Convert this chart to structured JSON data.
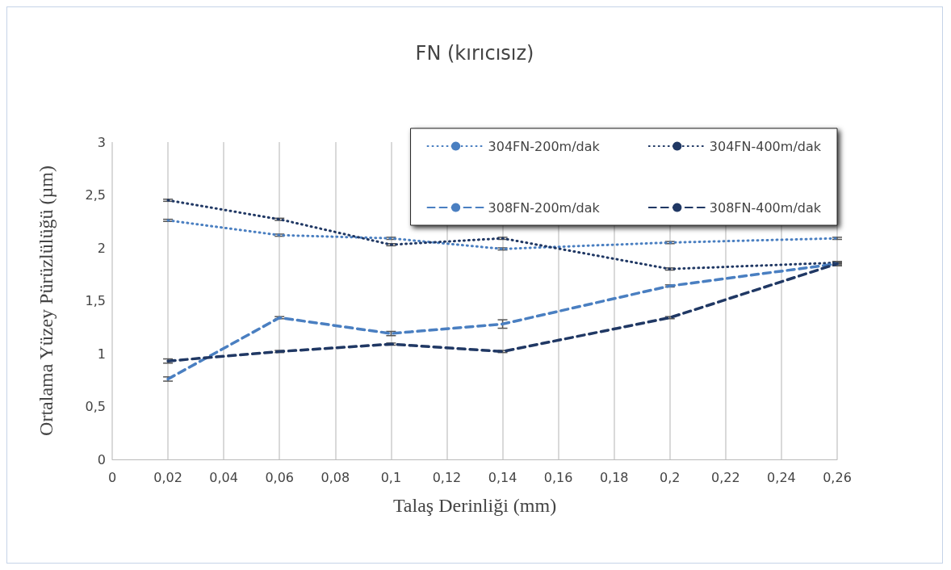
{
  "chart_data": {
    "type": "line",
    "title": "FN (kırıcısız)",
    "xlabel": "Talaş Derinliği (mm)",
    "ylabel": "Ortalama Yüzey Pürüzlülüğü (µm)",
    "x": [
      0.02,
      0.06,
      0.1,
      0.14,
      0.2,
      0.26
    ],
    "xlim": [
      0,
      0.26
    ],
    "xticks": [
      0,
      {
        "value": 0.02,
        "label": "0,02"
      },
      {
        "value": 0.04,
        "label": "0,04"
      },
      {
        "value": 0.06,
        "label": "0,06"
      },
      {
        "value": 0.08,
        "label": "0,08"
      },
      {
        "value": 0.1,
        "label": "0,1"
      },
      {
        "value": 0.12,
        "label": "0,12"
      },
      {
        "value": 0.14,
        "label": "0,14"
      },
      {
        "value": 0.16,
        "label": "0,16"
      },
      {
        "value": 0.18,
        "label": "0,18"
      },
      {
        "value": 0.2,
        "label": "0,2"
      },
      {
        "value": 0.22,
        "label": "0,22"
      },
      {
        "value": 0.24,
        "label": "0,24"
      },
      {
        "value": 0.26,
        "label": "0,26"
      }
    ],
    "ylim": [
      0,
      3
    ],
    "yticks": [
      0,
      {
        "value": 0.5,
        "label": "0,5"
      },
      1,
      {
        "value": 1.5,
        "label": "1,5"
      },
      2,
      {
        "value": 2.5,
        "label": "2,5"
      },
      3
    ],
    "grid": "x",
    "legend": "top right",
    "marker": "none",
    "series": [
      {
        "name": "304FN-200m/dak",
        "color": "#4a7fc1",
        "line_style": "dotted",
        "values": [
          2.26,
          2.12,
          2.09,
          1.99,
          2.05,
          2.09
        ],
        "errors": [
          0.01,
          0.01,
          0.01,
          0.01,
          0.01,
          0.01
        ]
      },
      {
        "name": "304FN-400m/dak",
        "color": "#203864",
        "line_style": "dotted",
        "values": [
          2.45,
          2.27,
          2.03,
          2.09,
          1.8,
          1.86
        ],
        "errors": [
          0.01,
          0.01,
          0.01,
          0.01,
          0.01,
          0.01
        ]
      },
      {
        "name": "308FN-200m/dak",
        "color": "#4a7fc1",
        "line_style": "dashed",
        "values": [
          0.76,
          1.34,
          1.19,
          1.28,
          1.64,
          1.85
        ],
        "errors": [
          0.02,
          0.01,
          0.02,
          0.04,
          0.01,
          0.01
        ]
      },
      {
        "name": "308FN-400m/dak",
        "color": "#203864",
        "line_style": "dashed",
        "values": [
          0.93,
          1.02,
          1.09,
          1.02,
          1.34,
          1.85
        ],
        "errors": [
          0.02,
          0.01,
          0.01,
          0.01,
          0.01,
          0.02
        ]
      }
    ]
  }
}
